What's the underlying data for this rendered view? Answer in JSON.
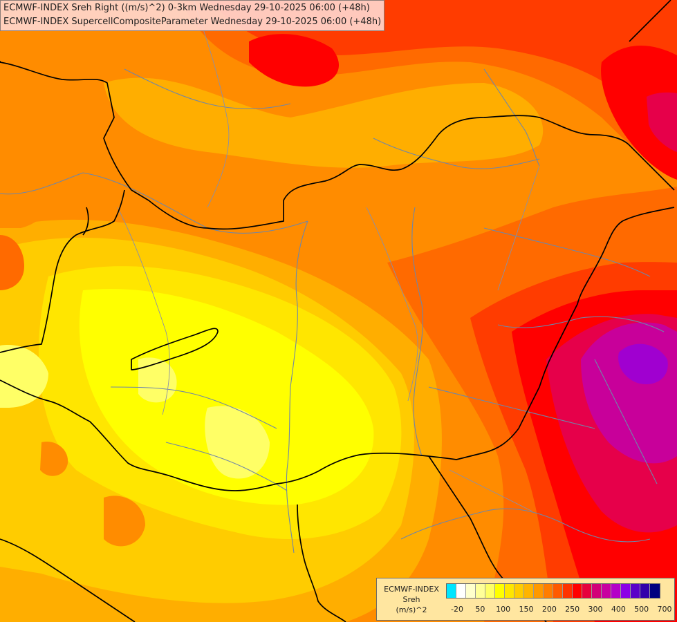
{
  "header": {
    "line1": "ECMWF-INDEX Sreh Right ((m/s)^2) 0-3km Wednesday 29-10-2025 06:00 (+48h)",
    "line2": "ECMWF-INDEX SupercellCompositeParameter Wednesday 29-10-2025 06:00 (+48h)"
  },
  "legend": {
    "model": "ECMWF-INDEX",
    "variable": "Sreh",
    "unit": "(m/s)^2",
    "colors": [
      "#00e6ff",
      "#ffffff",
      "#ffffcc",
      "#ffff99",
      "#ffff66",
      "#ffff00",
      "#ffe600",
      "#ffcc00",
      "#ffb400",
      "#ff9900",
      "#ff7d00",
      "#ff5a00",
      "#ff3200",
      "#ff0000",
      "#e6003c",
      "#d20078",
      "#c800a0",
      "#b400c8",
      "#8c00e6",
      "#5a00c8",
      "#3200aa",
      "#000080"
    ],
    "ticks": [
      "-20",
      "50",
      "100",
      "150",
      "200",
      "250",
      "300",
      "400",
      "500",
      "700"
    ]
  },
  "map": {
    "fill_colors": {
      "base": "#ff8c00",
      "orange_light": "#ffae00",
      "yellow_orange": "#ffcc00",
      "yellow": "#ffe600",
      "yellow_bright": "#ffff00",
      "yellow_pale": "#ffff66",
      "orange_dark": "#ff6a00",
      "red_orange": "#ff3c00",
      "red": "#ff0000",
      "crimson": "#e6004a",
      "magenta": "#c8009a",
      "purple": "#a000d0"
    }
  }
}
